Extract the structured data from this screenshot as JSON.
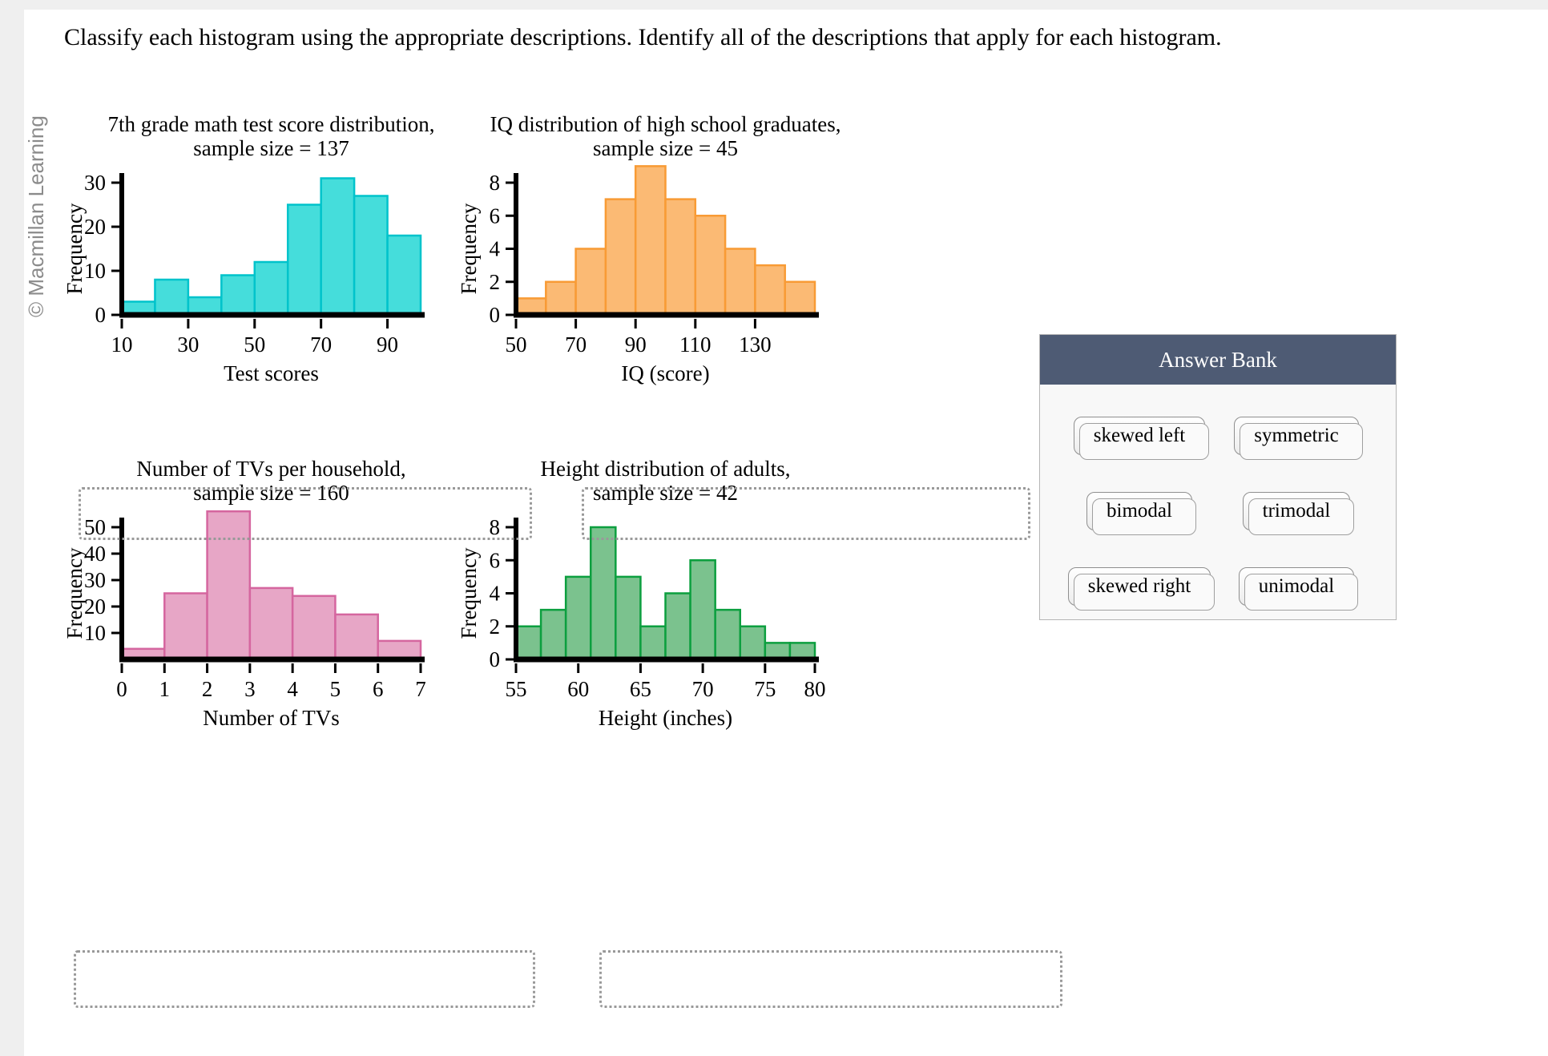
{
  "page": {
    "prompt": "Classify each histogram using the appropriate descriptions. Identify all of the descriptions that apply for each histogram.",
    "copyright": "© Macmillan Learning"
  },
  "answer_bank": {
    "title": "Answer Bank",
    "options": [
      "skewed left",
      "symmetric",
      "bimodal",
      "trimodal",
      "skewed right",
      "unimodal"
    ]
  },
  "chart_data": [
    {
      "type": "bar",
      "title": "7th grade math test score distribution,",
      "subtitle": "sample size = 137",
      "xlabel": "Test scores",
      "ylabel": "Frequency",
      "bin_start": 10,
      "bin_width": 10,
      "values": [
        3,
        8,
        4,
        9,
        12,
        25,
        31,
        27,
        18
      ],
      "xlim": [
        10,
        100
      ],
      "ylim": [
        0,
        30
      ],
      "x_ticks": [
        10,
        30,
        50,
        70,
        90
      ],
      "y_ticks": [
        0,
        10,
        20,
        30
      ],
      "fill": "#45DDDB",
      "stroke": "#00C3CB"
    },
    {
      "type": "bar",
      "title": "IQ distribution of high school graduates,",
      "subtitle": "sample size = 45",
      "xlabel": "IQ (score)",
      "ylabel": "Frequency",
      "bin_start": 50,
      "bin_width": 10,
      "values": [
        1,
        2,
        4,
        7,
        9,
        7,
        6,
        4,
        3,
        2
      ],
      "xlim": [
        50,
        150
      ],
      "ylim": [
        0,
        8
      ],
      "x_ticks": [
        50,
        70,
        90,
        110,
        130
      ],
      "y_ticks": [
        0,
        2,
        4,
        6,
        8
      ],
      "fill": "#FBBA74",
      "stroke": "#F89B35"
    },
    {
      "type": "bar",
      "title": "Number of TVs per household,",
      "subtitle": "sample size = 160",
      "xlabel": "Number of TVs",
      "ylabel": "Frequency",
      "bin_start": 0,
      "bin_width": 1,
      "values": [
        4,
        25,
        56,
        27,
        24,
        17,
        7
      ],
      "xlim": [
        0,
        7
      ],
      "ylim": [
        0,
        50
      ],
      "x_ticks": [
        0,
        1,
        2,
        3,
        4,
        5,
        6,
        7
      ],
      "y_ticks": [
        10,
        20,
        30,
        40,
        50
      ],
      "fill": "#E7A6C6",
      "stroke": "#D5669F"
    },
    {
      "type": "bar",
      "title": "Height distribution of adults,",
      "subtitle": "sample size = 42",
      "xlabel": "Height (inches)",
      "ylabel": "Frequency",
      "bin_start": 55,
      "bin_width": 2,
      "values": [
        2,
        3,
        5,
        8,
        5,
        2,
        4,
        6,
        3,
        2,
        1,
        1
      ],
      "xlim": [
        55,
        79
      ],
      "ylim": [
        0,
        8
      ],
      "x_ticks": [
        55,
        60,
        65,
        70,
        75,
        80
      ],
      "y_ticks": [
        0,
        2,
        4,
        6,
        8
      ],
      "fill": "#7BC28E",
      "stroke": "#0C9F3F"
    }
  ]
}
